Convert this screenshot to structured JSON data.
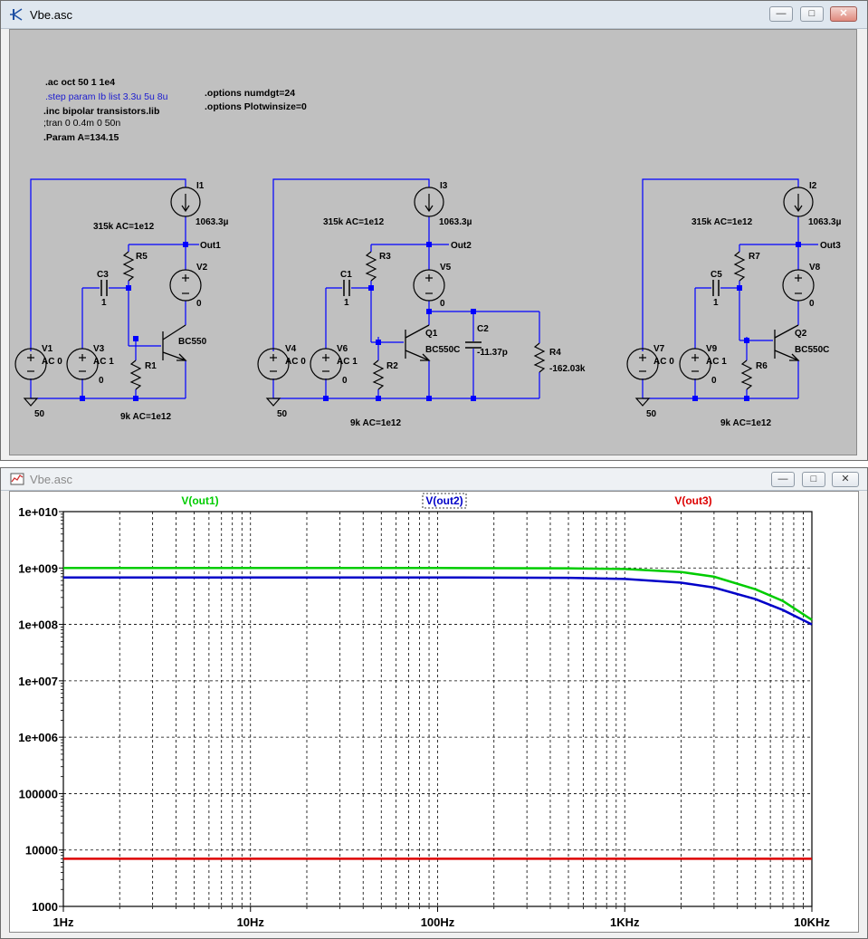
{
  "schematic_window": {
    "title": "Vbe.asc",
    "directives": {
      "ac": ".ac oct 50 1 1e4",
      "step": ".step param Ib list 3.3u 5u 8u",
      "inc": ".inc bipolar transistors.lib",
      "tran": ";tran 0 0.4m 0 50n",
      "param": ".Param A=134.15",
      "numdgt": ".options numdgt=24",
      "plotwinsize": ".options Plotwinsize=0"
    },
    "circuit1": {
      "I1": "I1",
      "I1_val": "1063.3µ",
      "r_feedback_label": "315k AC=1e12",
      "out": "Out1",
      "R5": "R5",
      "C3": "C3",
      "C3_val": "1",
      "V2": "V2",
      "V2_val": "0",
      "V1": "V1",
      "V1_val": "AC 0",
      "V3": "V3",
      "V3_val": "AC 1",
      "V3_dc": "0",
      "R1": "R1",
      "transistor": "BC550",
      "r_bottom_label": "9k AC=1e12",
      "gnd": "50"
    },
    "circuit2": {
      "I3": "I3",
      "I3_val": "1063.3µ",
      "r_feedback_label": "315k AC=1e12",
      "out": "Out2",
      "R3": "R3",
      "C1": "C1",
      "C1_val": "1",
      "V5": "V5",
      "V5_val": "0",
      "V4": "V4",
      "V4_val": "AC 0",
      "V6": "V6",
      "V6_val": "AC 1",
      "V6_dc": "0",
      "R2": "R2",
      "Q1": "Q1",
      "transistor": "BC550C",
      "C2": "C2",
      "C2_val": "-11.37p",
      "R4": "R4",
      "R4_val": "-162.03k",
      "r_bottom_label": "9k AC=1e12",
      "gnd": "50"
    },
    "circuit3": {
      "I2": "I2",
      "I2_val": "1063.3µ",
      "r_feedback_label": "315k AC=1e12",
      "out": "Out3",
      "R7": "R7",
      "C5": "C5",
      "C5_val": "1",
      "V8": "V8",
      "V8_val": "0",
      "V7": "V7",
      "V7_val": "AC 0",
      "V9": "V9",
      "V9_val": "AC 1",
      "V9_dc": "0",
      "R6": "R6",
      "Q2": "Q2",
      "transistor": "BC550C",
      "r_bottom_label": "9k AC=1e12",
      "gnd": "50"
    }
  },
  "plot_window": {
    "title": "Vbe.asc"
  },
  "colors": {
    "wire": "#0000ff",
    "junction": "#0000ff",
    "text": "#000000",
    "step_directive": "#0000ff",
    "trace_out1": "#00cc00",
    "trace_out2": "#0000c8",
    "trace_out3": "#dd0000"
  },
  "chart_data": {
    "type": "line",
    "x_scale": "log",
    "y_scale": "log",
    "xlim": [
      1,
      10000
    ],
    "ylim": [
      1000,
      10000000000
    ],
    "x_ticks": [
      1,
      10,
      100,
      1000,
      10000
    ],
    "x_tick_labels": [
      "1Hz",
      "10Hz",
      "100Hz",
      "1KHz",
      "10KHz"
    ],
    "y_ticks": [
      1000,
      10000,
      100000,
      1000000,
      10000000,
      100000000,
      1000000000,
      10000000000
    ],
    "y_tick_labels": [
      "1000",
      "10000",
      "100000",
      "1e+006",
      "1e+007",
      "1e+008",
      "1e+009",
      "1e+010"
    ],
    "grid": true,
    "legend_placement": "top",
    "series": [
      {
        "name": "V(out1)",
        "color": "#00cc00",
        "x": [
          1,
          10,
          100,
          500,
          1000,
          2000,
          3000,
          5000,
          7000,
          10000
        ],
        "y": [
          1000000000,
          1000000000,
          1000000000,
          990000000,
          960000000,
          850000000,
          700000000,
          420000000,
          260000000,
          120000000
        ]
      },
      {
        "name": "V(out2)",
        "color": "#0000c8",
        "boxed": true,
        "x": [
          1,
          10,
          100,
          500,
          1000,
          2000,
          3000,
          5000,
          7000,
          10000
        ],
        "y": [
          680000000,
          680000000,
          680000000,
          670000000,
          640000000,
          550000000,
          450000000,
          280000000,
          180000000,
          100000000
        ]
      },
      {
        "name": "V(out3)",
        "color": "#dd0000",
        "x": [
          1,
          10,
          100,
          1000,
          10000
        ],
        "y": [
          7000,
          7000,
          7000,
          7000,
          7000
        ]
      }
    ]
  }
}
